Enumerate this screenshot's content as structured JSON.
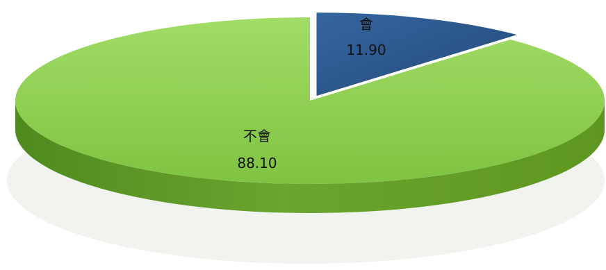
{
  "chart_data": {
    "type": "pie",
    "categories": [
      "會",
      "不會"
    ],
    "values": [
      11.9,
      88.1
    ],
    "labels": [
      "11.90",
      "88.10"
    ],
    "colors": [
      "#2e578f",
      "#8ccf4d"
    ],
    "legend": "none",
    "style": "3d-exploded"
  }
}
